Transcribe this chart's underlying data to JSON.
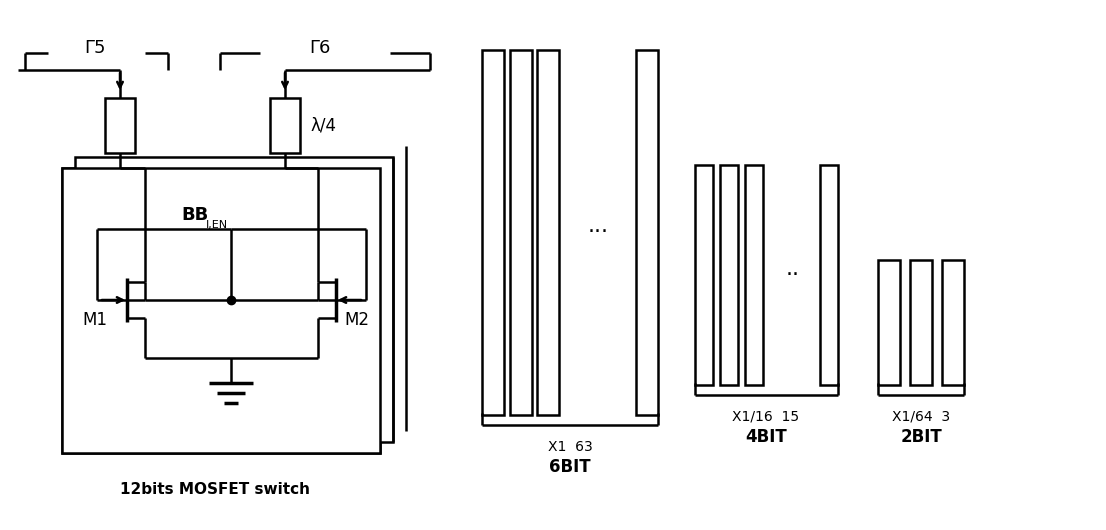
{
  "bg_color": "#ffffff",
  "line_color": "#000000",
  "fig_width": 11.06,
  "fig_height": 5.3,
  "title_left": "12bits MOSFET switch",
  "label_6bit": "6BIT",
  "label_4bit": "4BIT",
  "label_2bit": "2BIT",
  "sub_6bit": "X1  63",
  "sub_4bit": "X1/16  15",
  "sub_2bit": "X1/64  3",
  "gamma5": "Γ5",
  "gamma6": "Γ6",
  "lambda4": "λ/4",
  "bb_label": "BB",
  "bb_sub": "I,EN",
  "m1_label": "M1",
  "m2_label": "M2"
}
